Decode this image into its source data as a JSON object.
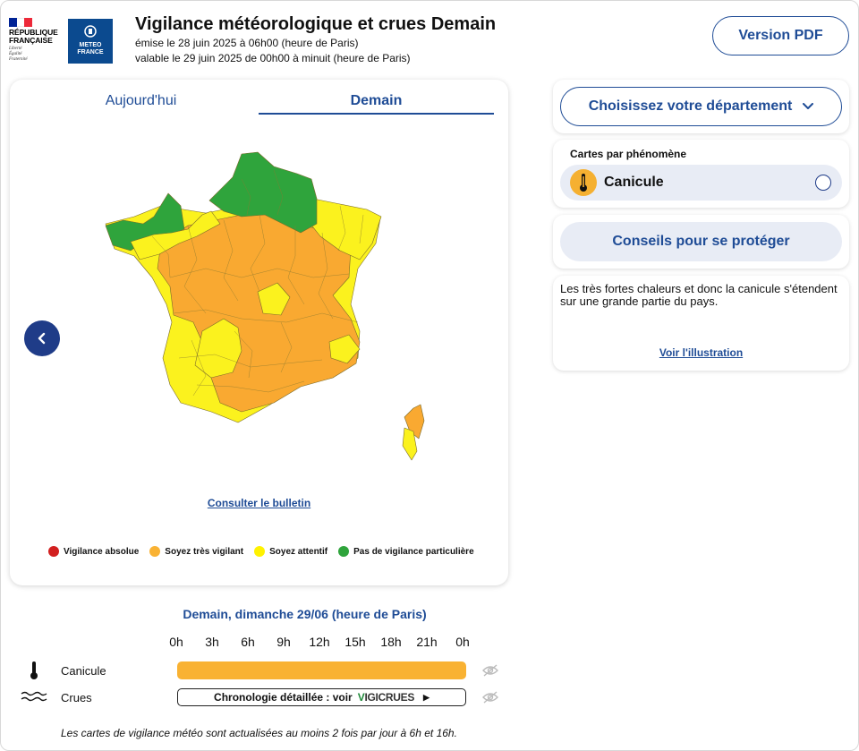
{
  "header": {
    "rf_name_line1": "RÉPUBLIQUE",
    "rf_name_line2": "FRANÇAISE",
    "rf_motto_1": "Liberté",
    "rf_motto_2": "Égalité",
    "rf_motto_3": "Fraternité",
    "mf_line1": "METEO",
    "mf_line2": "FRANCE",
    "title": "Vigilance météorologique et crues Demain",
    "emitted": "émise le 28 juin 2025 à 06h00 (heure de Paris)",
    "valid": "valable le 29 juin 2025 de 00h00 à minuit (heure de Paris)",
    "pdf_button": "Version PDF"
  },
  "tabs": [
    {
      "label": "Aujourd'hui",
      "active": false
    },
    {
      "label": "Demain",
      "active": true
    }
  ],
  "map": {
    "bulletin_link": "Consulter le bulletin",
    "colors": {
      "red": "#d21f1f",
      "orange": "#f9a931",
      "yellow": "#fbf21e",
      "green": "#2fa43c"
    }
  },
  "legend": [
    {
      "label": "Vigilance absolue",
      "color": "#d21f1f"
    },
    {
      "label": "Soyez très vigilant",
      "color": "#f9b233"
    },
    {
      "label": "Soyez attentif",
      "color": "#fff200"
    },
    {
      "label": "Pas de vigilance particulière",
      "color": "#2fa43c"
    }
  ],
  "panel": {
    "dept_button": "Choisissez votre département",
    "phenomena_title": "Cartes par phénomène",
    "phenomenon": "Canicule",
    "conseils_button": "Conseils pour se protéger",
    "description": "Les très fortes chaleurs et donc la canicule s'étendent sur une grande partie du pays.",
    "illustration_link": "Voir l'illustration"
  },
  "timeline": {
    "date_label": "Demain, dimanche 29/06 (heure de Paris)",
    "hours": [
      "0h",
      "3h",
      "6h",
      "9h",
      "12h",
      "15h",
      "18h",
      "21h",
      "0h"
    ],
    "rows": [
      {
        "label": "Canicule",
        "level_color": "#f9b233"
      },
      {
        "label": "Crues",
        "chronology_text": "Chronologie détaillée : voir",
        "vigicrues_v": "V",
        "vigicrues_rest": "IGICRUES"
      }
    ],
    "footer_note": "Les cartes de vigilance météo sont actualisées au moins 2 fois par jour à 6h et 16h."
  }
}
